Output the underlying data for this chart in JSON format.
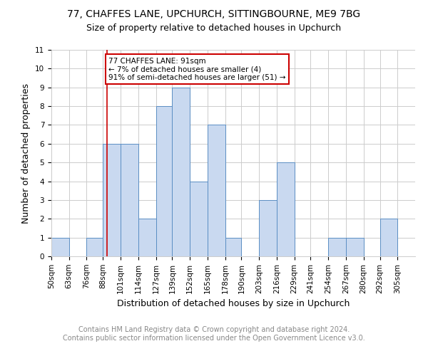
{
  "title1": "77, CHAFFES LANE, UPCHURCH, SITTINGBOURNE, ME9 7BG",
  "title2": "Size of property relative to detached houses in Upchurch",
  "xlabel": "Distribution of detached houses by size in Upchurch",
  "ylabel": "Number of detached properties",
  "footnote1": "Contains HM Land Registry data © Crown copyright and database right 2024.",
  "footnote2": "Contains public sector information licensed under the Open Government Licence v3.0.",
  "bin_labels": [
    "50sqm",
    "63sqm",
    "76sqm",
    "88sqm",
    "101sqm",
    "114sqm",
    "127sqm",
    "139sqm",
    "152sqm",
    "165sqm",
    "178sqm",
    "190sqm",
    "203sqm",
    "216sqm",
    "229sqm",
    "241sqm",
    "254sqm",
    "267sqm",
    "280sqm",
    "292sqm",
    "305sqm"
  ],
  "bin_edges": [
    50,
    63,
    76,
    88,
    101,
    114,
    127,
    139,
    152,
    165,
    178,
    190,
    203,
    216,
    229,
    241,
    254,
    267,
    280,
    292,
    305,
    318
  ],
  "counts": [
    1,
    0,
    1,
    6,
    6,
    2,
    8,
    9,
    4,
    7,
    1,
    0,
    3,
    5,
    0,
    0,
    1,
    1,
    0,
    2,
    0
  ],
  "bar_color": "#c9d9f0",
  "bar_edge_color": "#5b8ec4",
  "property_line_x": 91,
  "property_line_color": "#cc0000",
  "annotation_text": "77 CHAFFES LANE: 91sqm\n← 7% of detached houses are smaller (4)\n91% of semi-detached houses are larger (51) →",
  "annotation_box_color": "#cc0000",
  "ylim": [
    0,
    11
  ],
  "yticks": [
    0,
    1,
    2,
    3,
    4,
    5,
    6,
    7,
    8,
    9,
    10,
    11
  ],
  "grid_color": "#cccccc",
  "bg_color": "#ffffff",
  "title1_fontsize": 10,
  "title2_fontsize": 9,
  "xlabel_fontsize": 9,
  "ylabel_fontsize": 9,
  "tick_fontsize": 7.5,
  "footnote_fontsize": 7
}
